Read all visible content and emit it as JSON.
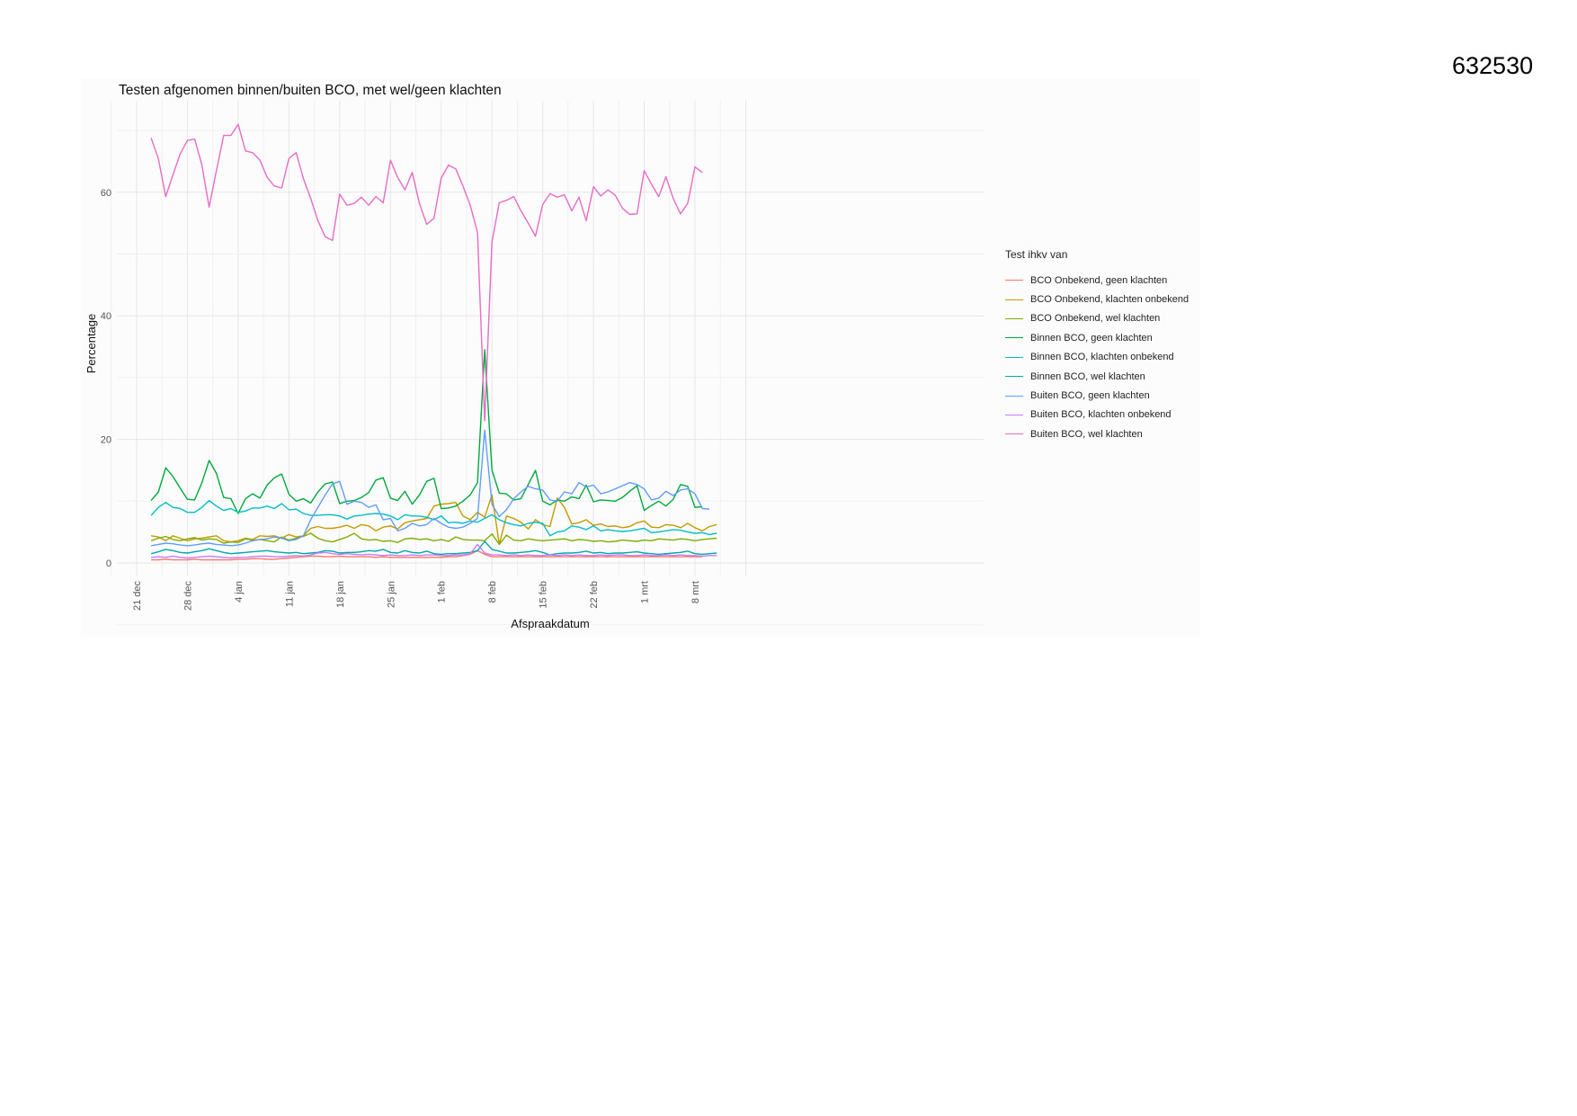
{
  "page": {
    "doc_number": "632530"
  },
  "chart_data": {
    "type": "line",
    "title": "Testen afgenomen binnen/buiten BCO, met wel/geen klachten",
    "xlabel": "Afspraakdatum",
    "ylabel": "Percentage",
    "ylim": [
      0,
      72
    ],
    "xlim_days": [
      0,
      82
    ],
    "yticks": [
      0,
      20,
      40,
      60
    ],
    "xticks": [
      {
        "label": "21 dec",
        "day": 0
      },
      {
        "label": "28 dec",
        "day": 7
      },
      {
        "label": "4 jan",
        "day": 14
      },
      {
        "label": "11 jan",
        "day": 21
      },
      {
        "label": "18 jan",
        "day": 28
      },
      {
        "label": "25 jan",
        "day": 35
      },
      {
        "label": "1 feb",
        "day": 42
      },
      {
        "label": "8 feb",
        "day": 49
      },
      {
        "label": "15 feb",
        "day": 56
      },
      {
        "label": "22 feb",
        "day": 63
      },
      {
        "label": "1 mrt",
        "day": 70
      },
      {
        "label": "8 mrt",
        "day": 77
      }
    ],
    "grid": true,
    "legend_title": "Test ihkv van",
    "legend_position": "right",
    "x_start": 2,
    "series": [
      {
        "name": "BCO Onbekend, geen klachten",
        "color": "#F8766D",
        "values": [
          0.5,
          0.5,
          0.6,
          0.5,
          0.5,
          0.5,
          0.6,
          0.5,
          0.5,
          0.5,
          0.5,
          0.5,
          0.6,
          0.6,
          0.7,
          0.7,
          0.6,
          0.6,
          0.7,
          0.8,
          0.9,
          1.0,
          1.1,
          1.1,
          1.0,
          1.0,
          1.1,
          1.0,
          1.0,
          1.0,
          1.0,
          0.9,
          1.0,
          0.9,
          0.9,
          0.9,
          0.9,
          0.9,
          0.9,
          0.9,
          0.9,
          1.0,
          1.0,
          1.2,
          1.4,
          2.0,
          1.4,
          1.0,
          1.0,
          1.0,
          1.0,
          1.0,
          1.0,
          1.0,
          1.0,
          1.0,
          1.0,
          1.0,
          1.0,
          1.0,
          1.0,
          1.0,
          1.0,
          1.0,
          1.0,
          1.0,
          1.0,
          1.0,
          1.0,
          1.0,
          1.0,
          1.0,
          1.0,
          1.0,
          1.0,
          1.0,
          1.0
        ]
      },
      {
        "name": "BCO Onbekend, klachten onbekend",
        "color": "#C49A00",
        "values": [
          4.4,
          4.2,
          3.6,
          4.4,
          4.0,
          3.6,
          3.9,
          4.0,
          4.2,
          4.4,
          3.6,
          3.4,
          3.6,
          4.0,
          3.8,
          4.4,
          4.3,
          4.4,
          4.0,
          4.6,
          4.2,
          4.4,
          5.6,
          5.9,
          5.6,
          5.6,
          5.8,
          6.1,
          5.6,
          6.2,
          6.0,
          5.2,
          5.8,
          6.0,
          5.5,
          6.5,
          6.8,
          7.0,
          7.2,
          9.2,
          9.5,
          9.6,
          9.8,
          7.6,
          7.0,
          8.2,
          7.4,
          11.0,
          3.0,
          7.6,
          7.2,
          6.6,
          5.5,
          7.0,
          6.2,
          5.9,
          10.5,
          9.0,
          6.3,
          6.5,
          7.0,
          6.1,
          6.3,
          5.9,
          6.0,
          5.7,
          5.9,
          6.5,
          6.8,
          5.8,
          5.7,
          6.2,
          6.1,
          5.7,
          6.4,
          5.7,
          5.2,
          5.9,
          6.2
        ]
      },
      {
        "name": "BCO Onbekend, wel klachten",
        "color": "#7CAE00",
        "values": [
          3.6,
          4.0,
          4.3,
          3.8,
          3.6,
          3.9,
          4.1,
          3.7,
          3.9,
          3.8,
          3.2,
          3.4,
          3.3,
          3.9,
          3.7,
          3.8,
          3.6,
          3.4,
          4.2,
          3.7,
          4.0,
          4.3,
          4.8,
          4.0,
          3.6,
          3.4,
          3.8,
          4.2,
          4.8,
          3.9,
          3.7,
          3.8,
          3.5,
          3.6,
          3.3,
          3.9,
          4.0,
          3.8,
          3.9,
          3.6,
          3.8,
          3.5,
          4.2,
          3.8,
          3.7,
          3.7,
          3.6,
          4.7,
          3.0,
          4.5,
          3.7,
          3.6,
          3.9,
          3.7,
          3.6,
          3.7,
          3.8,
          3.9,
          3.6,
          3.8,
          3.7,
          3.5,
          3.6,
          3.4,
          3.5,
          3.7,
          3.6,
          3.5,
          3.7,
          3.6,
          3.9,
          3.8,
          3.7,
          3.9,
          3.8,
          3.6,
          3.8,
          3.9,
          4.0
        ]
      },
      {
        "name": "Binnen BCO, geen klachten",
        "color": "#00A93D",
        "values": [
          10.1,
          11.5,
          15.4,
          14.0,
          12.1,
          10.3,
          10.2,
          13.0,
          16.6,
          14.5,
          10.6,
          10.4,
          8.0,
          10.4,
          11.2,
          10.5,
          12.6,
          13.8,
          14.4,
          11.1,
          10.0,
          10.4,
          9.7,
          11.5,
          12.8,
          13.1,
          9.6,
          10.0,
          10.1,
          10.6,
          11.4,
          13.4,
          13.8,
          10.5,
          10.1,
          11.6,
          9.5,
          11.0,
          13.2,
          13.7,
          8.8,
          8.9,
          9.2,
          10.0,
          11.0,
          13.0,
          34.5,
          15.0,
          11.3,
          11.2,
          10.2,
          10.4,
          12.7,
          15.0,
          10.0,
          9.4,
          10.2,
          10.0,
          10.7,
          10.4,
          12.6,
          9.9,
          10.2,
          10.1,
          10.0,
          10.6,
          11.6,
          12.5,
          8.5,
          9.3,
          10.0,
          9.2,
          10.3,
          12.7,
          12.4,
          9.0,
          9.1
        ]
      },
      {
        "name": "Binnen BCO, klachten onbekend",
        "color": "#00BFC4",
        "values": [
          7.7,
          9.0,
          9.8,
          9.0,
          8.8,
          8.2,
          8.2,
          9.0,
          10.1,
          9.2,
          8.5,
          8.8,
          8.2,
          8.4,
          8.9,
          8.9,
          9.2,
          8.8,
          9.6,
          8.6,
          8.7,
          8.0,
          7.7,
          7.7,
          7.8,
          7.8,
          7.6,
          7.1,
          7.6,
          7.7,
          7.9,
          8.0,
          7.9,
          7.6,
          7.0,
          7.8,
          7.6,
          7.6,
          7.4,
          7.0,
          7.6,
          6.5,
          6.6,
          6.4,
          6.8,
          6.6,
          7.2,
          7.8,
          7.0,
          6.5,
          6.2,
          6.0,
          6.4,
          6.6,
          6.4,
          4.4,
          5.0,
          5.2,
          6.0,
          5.8,
          5.4,
          6.0,
          5.2,
          5.4,
          5.2,
          5.1,
          5.2,
          5.4,
          5.6,
          4.9,
          5.0,
          5.2,
          5.4,
          5.3,
          5.0,
          4.8,
          4.9,
          4.6,
          4.8
        ]
      },
      {
        "name": "Binnen BCO, wel klachten",
        "color": "#00A9A9",
        "values": [
          1.5,
          1.8,
          2.2,
          2.0,
          1.7,
          1.6,
          1.8,
          2.0,
          2.3,
          2.0,
          1.7,
          1.5,
          1.6,
          1.7,
          1.8,
          1.9,
          2.0,
          1.8,
          1.7,
          1.6,
          1.7,
          1.5,
          1.6,
          1.7,
          2.0,
          1.9,
          1.6,
          1.7,
          1.7,
          1.8,
          2.0,
          1.9,
          2.2,
          1.7,
          1.6,
          2.0,
          1.7,
          1.6,
          1.9,
          1.5,
          1.4,
          1.5,
          1.5,
          1.6,
          1.7,
          2.0,
          3.5,
          2.2,
          1.9,
          1.6,
          1.6,
          1.7,
          1.8,
          2.0,
          1.7,
          1.3,
          1.5,
          1.6,
          1.6,
          1.7,
          1.9,
          1.6,
          1.7,
          1.5,
          1.6,
          1.6,
          1.7,
          1.8,
          1.6,
          1.5,
          1.4,
          1.5,
          1.6,
          1.7,
          1.9,
          1.5,
          1.4,
          1.5,
          1.6
        ]
      },
      {
        "name": "Buiten BCO, geen klachten",
        "color": "#619CFF",
        "values": [
          2.8,
          3.0,
          3.2,
          3.1,
          2.9,
          2.8,
          2.9,
          3.1,
          3.2,
          3.0,
          2.9,
          2.8,
          2.9,
          3.2,
          3.6,
          3.8,
          3.9,
          4.2,
          4.0,
          3.6,
          3.8,
          4.4,
          7.0,
          9.0,
          11.0,
          12.8,
          13.2,
          9.5,
          10.0,
          9.8,
          9.0,
          9.4,
          7.0,
          7.2,
          5.2,
          5.6,
          6.4,
          6.0,
          6.2,
          7.2,
          6.4,
          5.8,
          5.6,
          5.8,
          6.4,
          7.2,
          21.5,
          9.5,
          7.5,
          8.6,
          10.4,
          11.5,
          12.4,
          12.0,
          11.8,
          10.2,
          10.0,
          11.5,
          11.2,
          13.0,
          12.3,
          12.6,
          11.2,
          11.5,
          12.0,
          12.5,
          13.0,
          12.7,
          12.0,
          10.2,
          10.5,
          11.6,
          10.9,
          11.8,
          12.0,
          11.2,
          8.8,
          8.7
        ]
      },
      {
        "name": "Buiten BCO, klachten onbekend",
        "color": "#C77CFF",
        "values": [
          0.9,
          1.0,
          0.9,
          1.1,
          0.9,
          0.8,
          0.9,
          1.0,
          1.1,
          1.0,
          0.9,
          0.8,
          0.9,
          0.9,
          1.0,
          1.1,
          1.1,
          1.0,
          1.0,
          1.1,
          1.2,
          1.1,
          1.3,
          1.6,
          1.7,
          1.5,
          1.4,
          1.5,
          1.4,
          1.3,
          1.4,
          1.3,
          1.2,
          1.3,
          1.2,
          1.2,
          1.3,
          1.2,
          1.3,
          1.3,
          1.2,
          1.2,
          1.3,
          1.3,
          1.5,
          3.0,
          1.6,
          1.3,
          1.3,
          1.2,
          1.3,
          1.2,
          1.3,
          1.2,
          1.2,
          1.3,
          1.2,
          1.3,
          1.2,
          1.3,
          1.2,
          1.2,
          1.3,
          1.2,
          1.3,
          1.3,
          1.2,
          1.2,
          1.3,
          1.2,
          1.2,
          1.3,
          1.2,
          1.3,
          1.2,
          1.2,
          1.1,
          1.2,
          1.2
        ]
      },
      {
        "name": "Buiten BCO, wel klachten",
        "color": "#E76BC7",
        "values": [
          68.8,
          65.4,
          59.3,
          62.8,
          66.2,
          68.4,
          68.6,
          64.4,
          57.6,
          63.5,
          69.2,
          69.2,
          71.0,
          66.7,
          66.4,
          65.2,
          62.4,
          61.0,
          60.7,
          65.5,
          66.4,
          62.2,
          59.0,
          55.4,
          52.8,
          52.2,
          59.7,
          57.9,
          58.2,
          59.2,
          57.9,
          59.3,
          58.3,
          65.2,
          62.4,
          60.4,
          63.2,
          58.2,
          54.8,
          55.8,
          62.3,
          64.4,
          63.8,
          61.0,
          57.9,
          53.5,
          23.0,
          52.0,
          58.3,
          58.7,
          59.3,
          57.0,
          55.0,
          52.9,
          58.0,
          59.8,
          59.2,
          59.6,
          57.0,
          59.2,
          55.4,
          60.9,
          59.4,
          60.4,
          59.5,
          57.4,
          56.4,
          56.5,
          63.5,
          61.3,
          59.3,
          62.5,
          59.0,
          56.5,
          58.2,
          64.1,
          63.2
        ]
      }
    ]
  }
}
